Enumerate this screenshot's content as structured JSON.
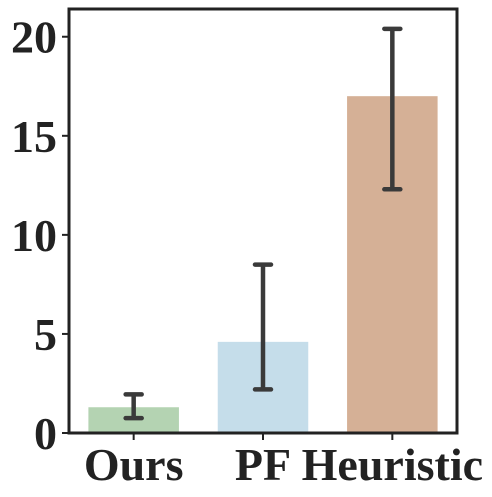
{
  "chart_data": {
    "type": "bar",
    "title": "",
    "xlabel": "",
    "ylabel": "",
    "categories": [
      "Ours",
      "PF",
      "Heuristic"
    ],
    "values": [
      1.3,
      4.6,
      17.0
    ],
    "error_low": [
      0.75,
      2.2,
      12.3
    ],
    "error_high": [
      1.95,
      8.5,
      20.4
    ],
    "colors": [
      "#b4d3b2",
      "#c5ddea",
      "#d5b096"
    ],
    "error_bar_color": "#3a3a3a",
    "ylim": [
      0,
      21.4
    ],
    "yticks": [
      0,
      5,
      10,
      15,
      20
    ],
    "ytick_labels": [
      "0",
      "5",
      "10",
      "15",
      "20"
    ],
    "grid": false,
    "legend": "none"
  }
}
